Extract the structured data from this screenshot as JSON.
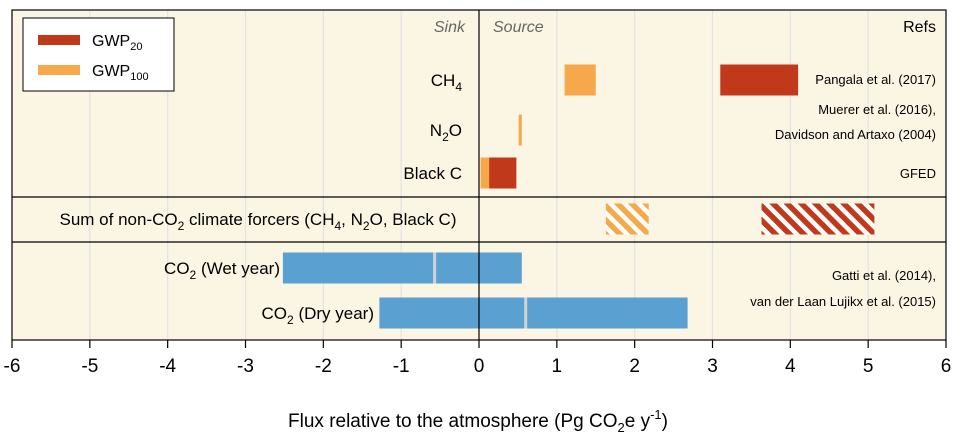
{
  "chart_data": {
    "type": "bar",
    "subtype": "floating-horizontal",
    "xlabel": "Flux relative to the atmosphere (Pg CO",
    "xlabel_sub": "2",
    "xlabel_mid": "e y",
    "xlabel_sup": "-1",
    "xlabel_end": ")",
    "xlim": [
      -6,
      6
    ],
    "xticks": [
      "-6",
      "-5",
      "-4",
      "-3",
      "-2",
      "-1",
      "0",
      "1",
      "2",
      "3",
      "4",
      "5",
      "6"
    ],
    "xtick_values": [
      -6,
      -5,
      -4,
      -3,
      -2,
      -1,
      0,
      1,
      2,
      3,
      4,
      5,
      6
    ],
    "grid": true,
    "region_labels": {
      "sink": "Sink",
      "source": "Source",
      "refs": "Refs"
    },
    "colors": {
      "gwp20": "#c0391b",
      "gwp100": "#f5a94a",
      "co2": "#5aa0d0",
      "background": "#fbf5e4",
      "median_line": "#d3d3d3"
    },
    "legend": {
      "placement": "top-left",
      "entries": [
        {
          "base": "GWP",
          "sub": "20",
          "color_key": "gwp20"
        },
        {
          "base": "GWP",
          "sub": "100",
          "color_key": "gwp100"
        }
      ]
    },
    "rows": [
      {
        "label": "CH",
        "label_sub": "4",
        "label_after": "",
        "bars": [
          {
            "series": "GWP100",
            "x0": 1.1,
            "x1": 1.5
          },
          {
            "series": "GWP20",
            "x0": 3.1,
            "x1": 4.1
          }
        ],
        "refs": [
          "Pangala et al. (2017)"
        ]
      },
      {
        "label": "N",
        "label_sub": "2",
        "label_after": "O",
        "bars": [
          {
            "series": "GWP100",
            "x0": 0.51,
            "x1": 0.55
          }
        ],
        "refs": [
          "Muerer et al. (2016),",
          "Davidson and Artaxo (2004)"
        ]
      },
      {
        "label": "Black C",
        "label_sub": "",
        "label_after": "",
        "bars": [
          {
            "series": "GWP100",
            "x0": 0.02,
            "x1": 0.13
          },
          {
            "series": "GWP20",
            "x0": 0.13,
            "x1": 0.48
          }
        ],
        "refs": [
          "GFED"
        ]
      },
      {
        "label": "Sum of non-CO",
        "label_sub": "2",
        "label_after": " climate forcers (CH",
        "label_sub2": "4",
        "label_after2": ", N",
        "label_sub3": "2",
        "label_after3": "O, Black C)",
        "bars": [
          {
            "series": "GWP100",
            "x0": 1.63,
            "x1": 2.18,
            "hatched": true
          },
          {
            "series": "GWP20",
            "x0": 3.63,
            "x1": 5.08,
            "hatched": true
          }
        ],
        "refs": []
      },
      {
        "label": "CO",
        "label_sub": "2",
        "label_after": " (Wet year)",
        "bars": [
          {
            "series": "CO2",
            "x0": -2.52,
            "x1": 0.55,
            "median": -0.57
          }
        ],
        "refs": []
      },
      {
        "label": "CO",
        "label_sub": "2",
        "label_after": " (Dry year)",
        "bars": [
          {
            "series": "CO2",
            "x0": -1.28,
            "x1": 2.68,
            "median": 0.6
          }
        ],
        "refs": []
      }
    ],
    "co2_refs": [
      "Gatti et al. (2014),",
      "van der Laan Lujikx et al. (2015)"
    ]
  }
}
